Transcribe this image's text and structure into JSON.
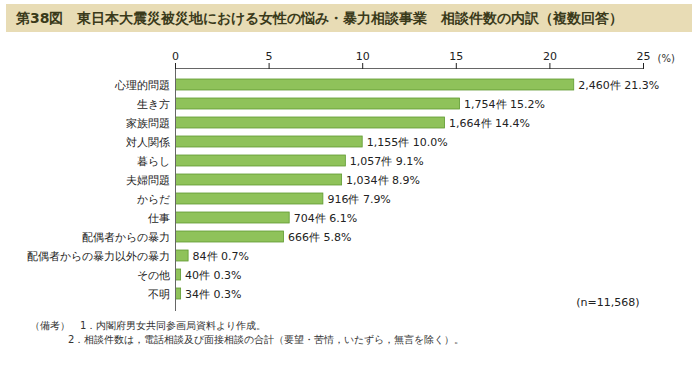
{
  "chart_data": {
    "type": "bar",
    "orientation": "horizontal",
    "title": "第38図　東日本大震災被災地における女性の悩み・暴力相談事業　相談件数の内訳（複数回答）",
    "categories": [
      "心理的問題",
      "生き方",
      "家族問題",
      "対人関係",
      "暮らし",
      "夫婦問題",
      "からだ",
      "仕事",
      "配偶者からの暴力",
      "配偶者からの暴力以外の暴力",
      "その他",
      "不明"
    ],
    "values": [
      21.3,
      15.2,
      14.4,
      10.0,
      9.1,
      8.9,
      7.9,
      6.1,
      5.8,
      0.7,
      0.3,
      0.3
    ],
    "value_labels": [
      "2,460件 21.3%",
      "1,754件 15.2%",
      "1,664件 14.4%",
      "1,155件 10.0%",
      "1,057件 9.1%",
      "1,034件 8.9%",
      "916件 7.9%",
      "704件 6.1%",
      "666件 5.8%",
      "84件 0.7%",
      "40件 0.3%",
      "34件 0.3%"
    ],
    "color": "#8fc25a",
    "data_labels": true,
    "grid": false,
    "xlim": [
      0,
      25
    ],
    "xticks": [
      0,
      5,
      10,
      15,
      20,
      25
    ],
    "xlabel": "(%)",
    "annotations": [
      "(n=11,568)"
    ],
    "notes": [
      "（備考）　1．内閣府男女共同参画局資料より作成。",
      "2．相談件数は，電話相談及び面接相談の合計（要望・苦情，いたずら，無言を除く）。"
    ]
  }
}
